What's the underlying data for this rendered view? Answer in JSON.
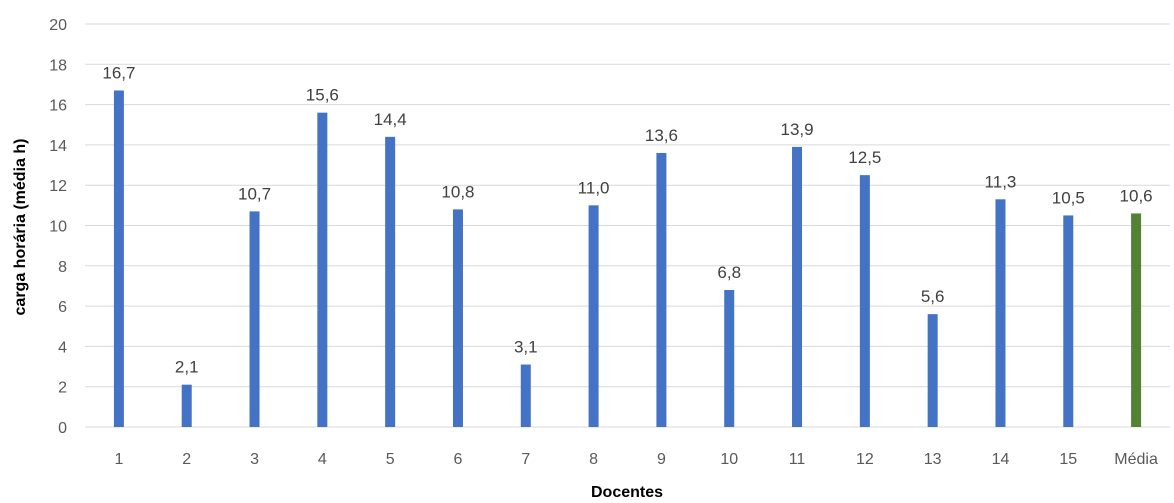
{
  "chart_data": {
    "type": "bar",
    "title": "",
    "xlabel": "Docentes",
    "ylabel": "carga horária (média h)",
    "ylim": [
      0,
      20
    ],
    "yticks": [
      0,
      2,
      4,
      6,
      8,
      10,
      12,
      14,
      16,
      18,
      20
    ],
    "grid": true,
    "legend": "none",
    "categories": [
      "1",
      "2",
      "3",
      "4",
      "5",
      "6",
      "7",
      "8",
      "9",
      "10",
      "11",
      "12",
      "13",
      "14",
      "15",
      "Média"
    ],
    "values": [
      16.7,
      2.1,
      10.7,
      15.6,
      14.4,
      10.8,
      3.1,
      11.0,
      13.6,
      6.8,
      13.9,
      12.5,
      5.6,
      11.3,
      10.5,
      10.6
    ],
    "data_labels": [
      "16,7",
      "2,1",
      "10,7",
      "15,6",
      "14,4",
      "10,8",
      "3,1",
      "11,0",
      "13,6",
      "6,8",
      "13,9",
      "12,5",
      "5,6",
      "11,3",
      "10,5",
      "10,6"
    ],
    "colors": {
      "bars": "#4472C4",
      "average_bar": "#548235",
      "grid": "#D9D9D9"
    }
  }
}
